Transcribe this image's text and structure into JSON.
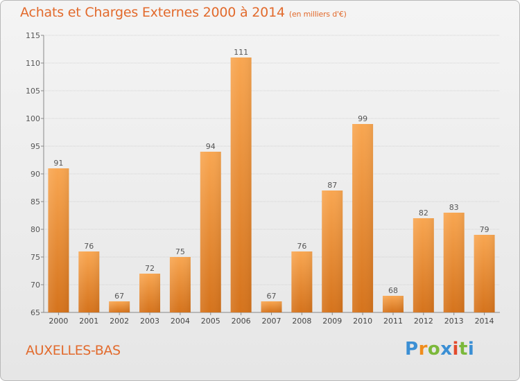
{
  "title": "Achats et Charges Externes 2000 à 2014",
  "unit": "(en milliers d'€)",
  "commune": "AUXELLES-BAS",
  "logo": {
    "letters": [
      {
        "ch": "P",
        "color": "#3b8fd4"
      },
      {
        "ch": "r",
        "color": "#f08c1c"
      },
      {
        "ch": "o",
        "color": "#7bb83a"
      },
      {
        "ch": "x",
        "color": "#3b8fd4"
      },
      {
        "ch": "i",
        "color": "#e24a2c"
      },
      {
        "ch": "t",
        "color": "#7bb83a"
      },
      {
        "ch": "i",
        "color": "#3b8fd4"
      }
    ]
  },
  "colors": {
    "accent": "#e26a2c",
    "bar_light": "#f7a24e",
    "bar_dark": "#d7761e"
  },
  "chart_data": {
    "type": "bar",
    "categories": [
      "2000",
      "2001",
      "2002",
      "2003",
      "2004",
      "2005",
      "2006",
      "2007",
      "2008",
      "2009",
      "2010",
      "2011",
      "2012",
      "2013",
      "2014"
    ],
    "values": [
      91,
      76,
      67,
      72,
      75,
      94,
      111,
      67,
      76,
      87,
      99,
      68,
      82,
      83,
      79
    ],
    "ylim": [
      65,
      115
    ],
    "yticks": [
      65,
      70,
      75,
      80,
      85,
      90,
      95,
      100,
      105,
      110,
      115
    ],
    "grid": true
  }
}
